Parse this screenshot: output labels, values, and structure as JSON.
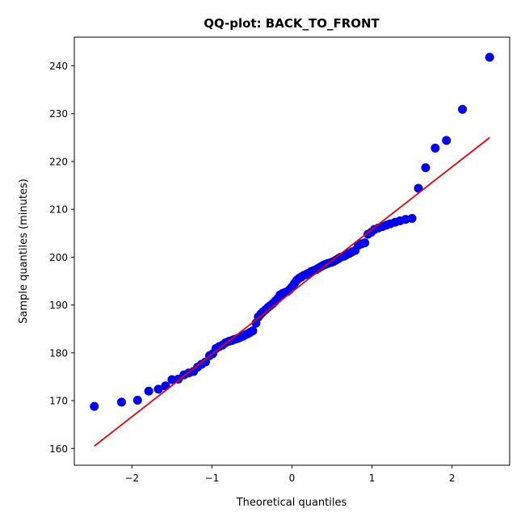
{
  "chart_data": {
    "type": "scatter",
    "title": "QQ-plot: BACK_TO_FRONT",
    "xlabel": "Theoretical quantiles",
    "ylabel": "Sample quantiles (minutes)",
    "xlim": [
      -2.72,
      2.72
    ],
    "ylim": [
      156.5,
      246.0
    ],
    "xticks": [
      -2,
      -1,
      0,
      1,
      2
    ],
    "xtick_labels": [
      "−2",
      "−1",
      "0",
      "1",
      "2"
    ],
    "yticks": [
      160,
      170,
      180,
      190,
      200,
      210,
      220,
      230,
      240
    ],
    "ytick_labels": [
      "160",
      "170",
      "180",
      "190",
      "200",
      "210",
      "220",
      "230",
      "240"
    ],
    "grid": false,
    "colors": {
      "points": "#0000ee",
      "line": "#ee0000"
    },
    "fit_line": {
      "x": [
        -2.47,
        2.47
      ],
      "y": [
        160.5,
        225.0
      ]
    },
    "points": {
      "x": [
        -2.47,
        -2.13,
        -1.93,
        -1.79,
        -1.67,
        -1.58,
        -1.5,
        -1.42,
        -1.35,
        -1.29,
        -1.23,
        -1.18,
        -1.13,
        -1.08,
        -1.03,
        -0.99,
        -0.95,
        -0.91,
        -0.87,
        -0.83,
        -0.79,
        -0.75,
        -0.72,
        -0.68,
        -0.65,
        -0.61,
        -0.58,
        -0.55,
        -0.52,
        -0.49,
        -0.45,
        -0.42,
        -0.39,
        -0.36,
        -0.33,
        -0.3,
        -0.27,
        -0.24,
        -0.21,
        -0.18,
        -0.15,
        -0.12,
        -0.09,
        -0.06,
        -0.03,
        0.0,
        0.03,
        0.06,
        0.09,
        0.12,
        0.15,
        0.18,
        0.21,
        0.24,
        0.27,
        0.3,
        0.33,
        0.36,
        0.39,
        0.42,
        0.45,
        0.49,
        0.52,
        0.55,
        0.58,
        0.61,
        0.65,
        0.68,
        0.72,
        0.75,
        0.79,
        0.83,
        0.87,
        0.91,
        0.95,
        0.99,
        1.03,
        1.08,
        1.13,
        1.18,
        1.23,
        1.29,
        1.35,
        1.42,
        1.5,
        1.58,
        1.67,
        1.79,
        1.93,
        2.13,
        2.47
      ],
      "y": [
        168.8,
        169.7,
        170.1,
        172.0,
        172.4,
        173.1,
        174.4,
        174.5,
        175.4,
        175.8,
        176.1,
        177.0,
        177.6,
        178.1,
        179.4,
        179.8,
        180.9,
        181.3,
        181.6,
        182.1,
        182.4,
        182.6,
        182.8,
        183.0,
        183.2,
        183.5,
        183.8,
        184.0,
        184.3,
        184.6,
        186.2,
        187.5,
        188.1,
        188.6,
        189.0,
        189.5,
        189.9,
        190.3,
        190.8,
        191.3,
        192.1,
        192.4,
        192.6,
        192.8,
        193.2,
        193.8,
        194.5,
        195.2,
        195.6,
        195.9,
        196.2,
        196.4,
        196.7,
        197.0,
        197.2,
        197.4,
        197.7,
        198.0,
        198.3,
        198.5,
        198.7,
        198.9,
        199.1,
        199.4,
        199.7,
        200.0,
        200.2,
        200.5,
        200.8,
        201.1,
        201.4,
        202.5,
        202.8,
        203.0,
        204.8,
        205.2,
        205.8,
        206.1,
        206.4,
        206.7,
        207.0,
        207.3,
        207.6,
        207.9,
        208.1,
        214.4,
        218.7,
        222.8,
        224.4,
        230.9,
        241.8
      ]
    }
  }
}
